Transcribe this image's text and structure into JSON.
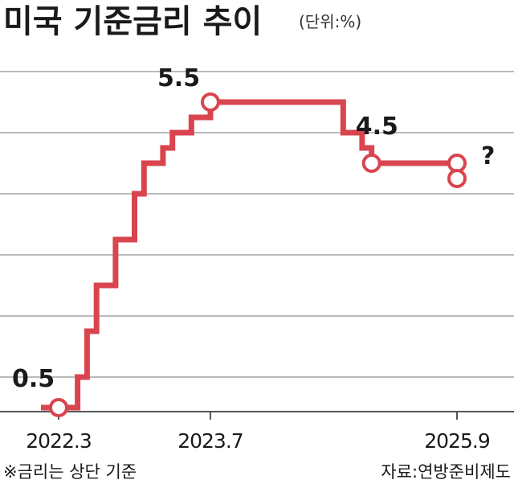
{
  "chart_data": {
    "type": "line",
    "title": "미국 기준금리 추이",
    "unit": "(단위:%)",
    "x_ticks": [
      "2022.3",
      "2023.7",
      "2025.9"
    ],
    "ylim": [
      0,
      6
    ],
    "grid": true,
    "step_points": [
      {
        "date": "2022-03",
        "value": 0.5
      },
      {
        "date": "2022-05",
        "value": 1.0
      },
      {
        "date": "2022-06",
        "value": 1.75
      },
      {
        "date": "2022-07",
        "value": 2.5
      },
      {
        "date": "2022-09",
        "value": 3.25
      },
      {
        "date": "2022-11",
        "value": 4.0
      },
      {
        "date": "2022-12",
        "value": 4.5
      },
      {
        "date": "2023-02",
        "value": 4.75
      },
      {
        "date": "2023-03",
        "value": 5.0
      },
      {
        "date": "2023-05",
        "value": 5.25
      },
      {
        "date": "2023-07",
        "value": 5.5
      },
      {
        "date": "2024-09",
        "value": 5.0
      },
      {
        "date": "2024-11",
        "value": 4.75
      },
      {
        "date": "2024-12",
        "value": 4.5
      },
      {
        "date": "2025-09",
        "value": 4.5
      }
    ],
    "markers": [
      {
        "date": "2022-03",
        "value": 0.5
      },
      {
        "date": "2023-07",
        "value": 5.5
      },
      {
        "date": "2024-12",
        "value": 4.5
      },
      {
        "date": "2025-09",
        "value": 4.5
      },
      {
        "date": "2025-09",
        "value": 4.25
      }
    ],
    "projection": {
      "date": "2025-09",
      "from": 4.5,
      "to": 4.25
    },
    "annotations": [
      {
        "text": "0.5",
        "date": "2022-03",
        "value": 0.5
      },
      {
        "text": "5.5",
        "date": "2023-07",
        "value": 5.5
      },
      {
        "text": "4.5",
        "date": "2024-12",
        "value": 4.5
      },
      {
        "text": "?",
        "date": "2025-09",
        "value": 4.25
      }
    ],
    "note": "※금리는 상단 기준",
    "source": "자료:연방준비제도"
  },
  "colors": {
    "line": "#d9454f",
    "marker_fill": "#ffffff",
    "grid": "#a3a3a3",
    "axis": "#555555",
    "text": "#1a1a1a"
  }
}
